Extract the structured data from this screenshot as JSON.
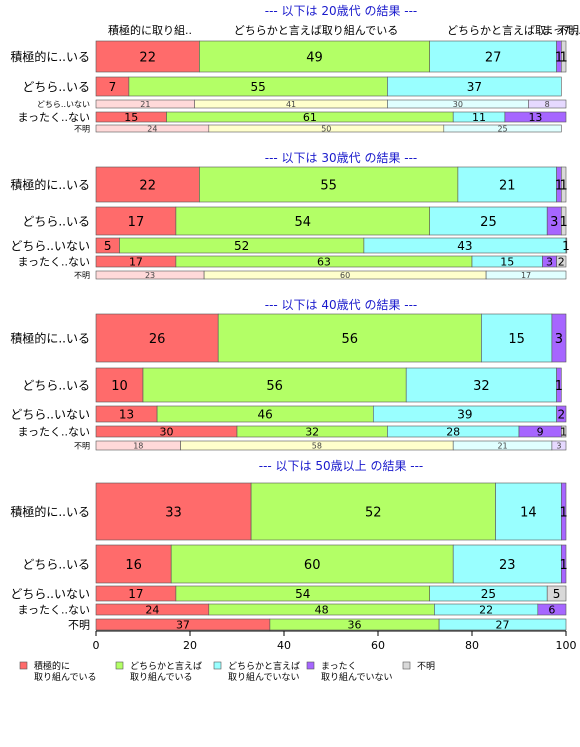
{
  "chart_data": {
    "type": "bar",
    "orientation": "horizontal",
    "stacked": "percent",
    "xlim": [
      0,
      100
    ],
    "x_ticks": [
      "0",
      "20",
      "40",
      "60",
      "80",
      "100"
    ],
    "column_headers": [
      "積極的に取り組..",
      "どちらかと言えば取り組んでいる",
      "どちらかと言えば取..",
      "まった..",
      "不明"
    ],
    "legend": {
      "position": "bottom",
      "items": [
        {
          "label": "積極的に\n取り組んでいる",
          "color": "#ff6b6b"
        },
        {
          "label": "どちらかと言えば\n取り組んでいる",
          "color": "#b3ff66"
        },
        {
          "label": "どちらかと言えば\n取り組んでいない",
          "color": "#99ffff"
        },
        {
          "label": "まったく\n取り組んでいない",
          "color": "#a666ff"
        },
        {
          "label": "不明",
          "color": "#d9d9d9"
        }
      ]
    },
    "panels": [
      {
        "title": "--- 以下は 20歳代 の結果 ---",
        "rows": [
          {
            "label": "積極的に..いる",
            "values": [
              22,
              49,
              27,
              1,
              1
            ]
          },
          {
            "label": "どちら..いる",
            "values": [
              7,
              55,
              37,
              0,
              0
            ]
          },
          {
            "label": "どちら..いない",
            "values": [
              21,
              41,
              30,
              8,
              0
            ]
          },
          {
            "label": "まったく..ない",
            "values": [
              15,
              61,
              11,
              13,
              0
            ]
          },
          {
            "label": "不明",
            "values": [
              24,
              50,
              25,
              0,
              0
            ]
          }
        ]
      },
      {
        "title": "--- 以下は 30歳代 の結果 ---",
        "rows": [
          {
            "label": "積極的に..いる",
            "values": [
              22,
              55,
              21,
              1,
              1
            ]
          },
          {
            "label": "どちら..いる",
            "values": [
              17,
              54,
              25,
              3,
              1
            ]
          },
          {
            "label": "どちら..いない",
            "values": [
              5,
              52,
              43,
              0,
              1
            ]
          },
          {
            "label": "まったく..ない",
            "values": [
              17,
              63,
              15,
              3,
              2
            ]
          },
          {
            "label": "不明",
            "values": [
              23,
              60,
              17,
              0,
              0
            ]
          }
        ]
      },
      {
        "title": "--- 以下は 40歳代 の結果 ---",
        "rows": [
          {
            "label": "積極的に..いる",
            "values": [
              26,
              56,
              15,
              3,
              0
            ]
          },
          {
            "label": "どちら..いる",
            "values": [
              10,
              56,
              32,
              1,
              0
            ]
          },
          {
            "label": "どちら..いない",
            "values": [
              13,
              46,
              39,
              2,
              0
            ]
          },
          {
            "label": "まったく..ない",
            "values": [
              30,
              32,
              28,
              9,
              1
            ]
          },
          {
            "label": "不明",
            "values": [
              18,
              58,
              21,
              3,
              0
            ]
          }
        ]
      },
      {
        "title": "--- 以下は 50歳以上 の結果 ---",
        "rows": [
          {
            "label": "積極的に..いる",
            "values": [
              33,
              52,
              14,
              1,
              0
            ]
          },
          {
            "label": "どちら..いる",
            "values": [
              16,
              60,
              23,
              1,
              0
            ]
          },
          {
            "label": "どちら..いない",
            "values": [
              17,
              54,
              25,
              0,
              5
            ]
          },
          {
            "label": "まったく..ない",
            "values": [
              24,
              48,
              22,
              6,
              0
            ]
          },
          {
            "label": "不明",
            "values": [
              37,
              36,
              27,
              0,
              0
            ]
          }
        ]
      }
    ]
  }
}
